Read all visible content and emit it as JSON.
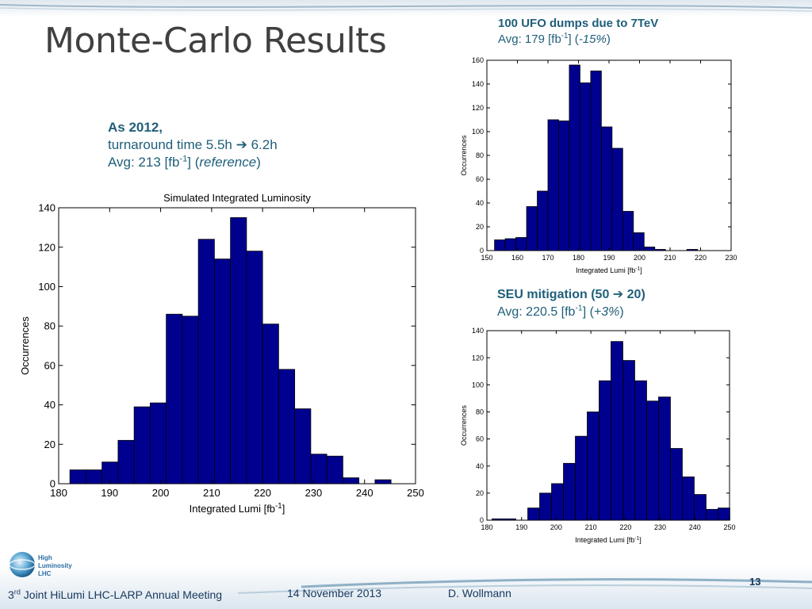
{
  "slide": {
    "title": "Monte-Carlo Results",
    "page_number": "13"
  },
  "colors": {
    "bar_fill": "#00008f",
    "text_teal": "#1f5f7a",
    "footer_text": "#17375e"
  },
  "blocks": {
    "b2012": {
      "head": "As 2012,",
      "line2_prefix": "turnaround time 5.5h ",
      "arrow": "➔",
      "line2_suffix": " 6.2h",
      "line3_prefix": "Avg: 213 [fb",
      "line3_sup": "-1",
      "line3_mid": "] (",
      "line3_em": "reference",
      "line3_end": ")"
    },
    "ufo": {
      "head": "100 UFO dumps due to 7TeV",
      "line2_prefix": "Avg: 179 [fb",
      "line2_sup": "-1",
      "line2_mid": "] (",
      "line2_em": "-15%",
      "line2_end": ")"
    },
    "seu": {
      "head_prefix": "SEU mitigation (50 ",
      "arrow": "➔",
      "head_suffix": " 20)",
      "line2_prefix": "Avg: 220.5 [fb",
      "line2_sup": "-1",
      "line2_mid": "] (",
      "line2_em": "+3%",
      "line2_end": ")"
    }
  },
  "footer": {
    "meeting_ord": "3",
    "meeting_sup": "rd",
    "meeting_rest": " Joint HiLumi LHC-LARP Annual Meeting",
    "date": "14 November 2013",
    "author": "D. Wollmann",
    "logo_lines": [
      "High",
      "Luminosity",
      "LHC"
    ]
  },
  "chart_data": [
    {
      "type": "bar",
      "title": "Simulated Integrated Luminosity",
      "xlabel": "Integrated Lumi [fb",
      "xlabel_sup": "-1",
      "xlabel_end": "]",
      "ylabel": "Occurrences",
      "xlim": [
        180,
        250
      ],
      "ylim": [
        0,
        140
      ],
      "xticks": [
        180,
        190,
        200,
        210,
        220,
        230,
        240,
        250
      ],
      "yticks": [
        0,
        20,
        40,
        60,
        80,
        100,
        120,
        140
      ],
      "bin_start": 182.2,
      "bin_width": 3.15,
      "values": [
        7,
        7,
        11,
        22,
        39,
        41,
        86,
        85,
        124,
        114,
        135,
        118,
        81,
        58,
        38,
        15,
        14,
        3,
        0,
        2
      ],
      "grid": false
    },
    {
      "type": "bar",
      "title": "",
      "xlabel": "Integrated Lumi [fb",
      "xlabel_sup": "-1",
      "xlabel_end": "]",
      "ylabel": "Occurrences",
      "xlim": [
        150,
        230
      ],
      "ylim": [
        0,
        160
      ],
      "xticks": [
        150,
        160,
        170,
        180,
        190,
        200,
        210,
        220,
        230
      ],
      "yticks": [
        0,
        20,
        40,
        60,
        80,
        100,
        120,
        140,
        160
      ],
      "bin_start": 152.5,
      "bin_width": 3.5,
      "values": [
        9,
        10,
        11,
        37,
        50,
        110,
        109,
        156,
        141,
        151,
        104,
        86,
        33,
        15,
        3,
        1,
        0,
        0,
        1,
        0
      ],
      "grid": false
    },
    {
      "type": "bar",
      "title": "",
      "xlabel": "Integrated Lumi [fb",
      "xlabel_sup": "-1",
      "xlabel_end": "]",
      "ylabel": "Occurrences",
      "xlim": [
        180,
        250
      ],
      "ylim": [
        0,
        140
      ],
      "xticks": [
        180,
        190,
        200,
        210,
        220,
        230,
        240,
        250
      ],
      "yticks": [
        0,
        20,
        40,
        60,
        80,
        100,
        120,
        140
      ],
      "bin_start": 181.5,
      "bin_width": 3.43,
      "values": [
        1,
        1,
        0,
        9,
        20,
        27,
        42,
        62,
        80,
        103,
        132,
        118,
        103,
        88,
        91,
        53,
        32,
        19,
        8,
        9
      ],
      "grid": false
    }
  ]
}
